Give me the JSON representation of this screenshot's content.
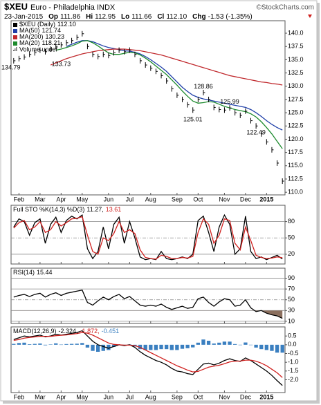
{
  "header": {
    "symbol": "$XEU",
    "name": "Euro - Philadelphia INDX",
    "credit": "©StockCharts.com",
    "date": "23-Jan-2015",
    "quote": [
      {
        "label": "Op",
        "value": "111.86"
      },
      {
        "label": "Hi",
        "value": "112.95"
      },
      {
        "label": "Lo",
        "value": "111.66"
      },
      {
        "label": "Cl",
        "value": "112.10"
      },
      {
        "label": "Chg",
        "value": "-1.53"
      }
    ],
    "change_pct": "(-1.35%)"
  },
  "chart_data": [
    {
      "type": "line",
      "grid": false,
      "categories": [
        null,
        "Feb",
        null,
        null,
        null,
        "Mar",
        null,
        null,
        null,
        "Apr",
        null,
        null,
        null,
        "May",
        null,
        null,
        null,
        null,
        "Jun",
        null,
        null,
        null,
        "Jul",
        null,
        null,
        null,
        "Aug",
        null,
        null,
        null,
        null,
        "Sep",
        null,
        null,
        null,
        "Oct",
        null,
        null,
        null,
        null,
        "Nov",
        null,
        null,
        null,
        "Dec",
        null,
        null,
        null,
        "2015",
        null,
        null,
        null
      ],
      "ylim": [
        109.5,
        142.35
      ],
      "yticks": [
        {
          "value": 140,
          "label": "140.0"
        },
        137.5,
        {
          "value": 135,
          "label": "135.0"
        },
        132.5,
        {
          "value": 130,
          "label": "130.0"
        },
        127.5,
        {
          "value": 125,
          "label": "125.0"
        },
        122.5,
        {
          "value": 120,
          "label": "120.0"
        },
        117.5,
        {
          "value": 115,
          "label": "115.0"
        },
        112.5,
        {
          "value": 110,
          "label": "110.0"
        }
      ],
      "series": [
        {
          "name": "$XEU (Daily)",
          "legend_value": "112.10",
          "color": "#000000",
          "style": "bar",
          "values": [
            134.8,
            135.2,
            135.5,
            136.0,
            136.3,
            136.8,
            136.5,
            137.0,
            137.5,
            137.8,
            138.2,
            138.6,
            139.2,
            139.9,
            137.5,
            136.0,
            135.6,
            136.0,
            135.8,
            136.3,
            136.8,
            136.5,
            136.8,
            136.0,
            134.8,
            134.0,
            133.4,
            132.8,
            132.0,
            131.0,
            129.5,
            128.3,
            127.5,
            126.5,
            125.5,
            127.5,
            128.8,
            127.5,
            126.0,
            125.6,
            125.5,
            125.9,
            125.0,
            124.5,
            125.3,
            123.5,
            122.5,
            121.0,
            119.5,
            118.0,
            115.5,
            112.1
          ]
        },
        {
          "name": "MA(50)",
          "legend_value": "121.74",
          "color": "#1f3fa8",
          "style": "line",
          "values": [
            null,
            null,
            null,
            null,
            null,
            null,
            null,
            null,
            null,
            null,
            137.5,
            137.9,
            138.3,
            138.6,
            138.6,
            138.4,
            138.0,
            137.6,
            137.3,
            137.1,
            136.9,
            136.7,
            136.6,
            136.4,
            136.1,
            135.6,
            135.0,
            134.3,
            133.6,
            132.8,
            131.8,
            130.8,
            129.8,
            129.0,
            128.3,
            127.9,
            127.6,
            127.4,
            127.2,
            127.0,
            126.8,
            126.6,
            126.4,
            126.2,
            126.0,
            125.6,
            125.0,
            124.3,
            123.5,
            122.8,
            122.2,
            121.74
          ]
        },
        {
          "name": "MA(200)",
          "legend_value": "130.23",
          "color": "#c0282c",
          "style": "line",
          "values": [
            null,
            null,
            null,
            null,
            null,
            null,
            null,
            134.0,
            134.4,
            134.8,
            135.2,
            135.5,
            135.8,
            136.1,
            136.3,
            136.5,
            136.7,
            136.8,
            136.9,
            137.0,
            137.0,
            137.0,
            136.9,
            136.8,
            136.7,
            136.5,
            136.3,
            136.1,
            135.9,
            135.6,
            135.3,
            135.0,
            134.7,
            134.4,
            134.1,
            133.8,
            133.5,
            133.2,
            132.9,
            132.6,
            132.3,
            132.0,
            131.8,
            131.6,
            131.4,
            131.2,
            131.0,
            130.8,
            130.7,
            130.5,
            130.4,
            130.23
          ]
        },
        {
          "name": "MA(20)",
          "legend_value": "118.21",
          "color": "#1d8a2d",
          "style": "line",
          "values": [
            null,
            null,
            null,
            null,
            null,
            null,
            null,
            null,
            136.8,
            137.0,
            137.3,
            137.6,
            138.0,
            138.5,
            138.6,
            138.2,
            137.6,
            136.9,
            136.3,
            136.0,
            136.0,
            136.2,
            136.4,
            136.3,
            135.9,
            135.3,
            134.6,
            133.8,
            133.0,
            132.2,
            131.2,
            130.2,
            129.1,
            128.1,
            127.2,
            126.8,
            126.9,
            127.1,
            127.0,
            126.6,
            126.2,
            125.9,
            125.6,
            125.4,
            125.2,
            124.8,
            124.2,
            123.3,
            122.2,
            121.0,
            119.6,
            118.21
          ]
        }
      ],
      "legend_extra": "Volume undef",
      "annotations": [
        134.79,
        133.73,
        128.86,
        125.99,
        125.01,
        122.49
      ]
    },
    {
      "type": "line",
      "grid": true,
      "title": "Full STO %K(14,3) %D(3)",
      "ylim": [
        2,
        110
      ],
      "yticks": [
        80,
        50,
        20
      ],
      "series": [
        {
          "legend_value": "11.27,",
          "color": "#000000",
          "style": "line",
          "values": [
            70,
            85,
            80,
            55,
            78,
            85,
            40,
            75,
            88,
            60,
            82,
            90,
            85,
            92,
            30,
            12,
            25,
            70,
            30,
            75,
            88,
            40,
            80,
            50,
            15,
            10,
            12,
            10,
            25,
            12,
            10,
            12,
            15,
            12,
            20,
            82,
            90,
            60,
            25,
            70,
            92,
            75,
            20,
            30,
            90,
            25,
            12,
            15,
            10,
            14,
            18,
            11.27
          ]
        },
        {
          "legend_value": "13.61",
          "color": "#d0201e",
          "style": "line",
          "values": [
            68,
            78,
            82,
            65,
            70,
            80,
            60,
            65,
            80,
            72,
            78,
            85,
            86,
            89,
            55,
            25,
            20,
            50,
            45,
            58,
            80,
            60,
            65,
            58,
            28,
            14,
            12,
            11,
            18,
            16,
            12,
            12,
            14,
            13,
            16,
            60,
            85,
            75,
            40,
            55,
            85,
            82,
            40,
            28,
            70,
            45,
            18,
            14,
            12,
            13,
            15,
            13.61
          ]
        }
      ]
    },
    {
      "type": "line",
      "grid": true,
      "title": "RSI(14)",
      "oversold": 30,
      "shade_color": "#8b6f5e",
      "ylim": [
        6,
        108.7
      ],
      "yticks": [
        90,
        70,
        50,
        30,
        10
      ],
      "series": [
        {
          "legend_value": "15.44",
          "color": "#000000",
          "style": "line",
          "values": [
            55,
            58,
            60,
            56,
            60,
            62,
            55,
            60,
            63,
            58,
            62,
            64,
            66,
            68,
            45,
            40,
            48,
            55,
            50,
            56,
            60,
            52,
            56,
            48,
            40,
            38,
            40,
            38,
            42,
            36,
            32,
            35,
            38,
            34,
            36,
            52,
            55,
            45,
            38,
            46,
            52,
            50,
            38,
            40,
            50,
            35,
            28,
            30,
            25,
            22,
            20,
            15.44
          ]
        }
      ]
    },
    {
      "type": "line",
      "grid": false,
      "title": "MACD(12,26,9)",
      "ylim": [
        -2.73,
        1.02
      ],
      "yticks": [
        0.5,
        {
          "value": 0,
          "label": "0.0"
        },
        -0.5,
        {
          "value": -1,
          "label": "-1.0"
        },
        -1.5,
        {
          "value": -2,
          "label": "-2.0"
        }
      ],
      "series": [
        {
          "legend_value": "-2.324,",
          "color": "#000000",
          "style": "line",
          "values": [
            0.3,
            0.4,
            0.5,
            0.45,
            0.5,
            0.55,
            0.45,
            0.5,
            0.6,
            0.55,
            0.6,
            0.65,
            0.7,
            0.8,
            0.5,
            0.2,
            0.0,
            -0.1,
            -0.2,
            -0.1,
            0.0,
            -0.05,
            0.0,
            -0.15,
            -0.4,
            -0.6,
            -0.75,
            -0.9,
            -1.0,
            -1.15,
            -1.35,
            -1.5,
            -1.55,
            -1.65,
            -1.7,
            -1.4,
            -1.1,
            -1.05,
            -1.15,
            -1.05,
            -0.9,
            -0.8,
            -0.9,
            -0.95,
            -0.75,
            -0.9,
            -1.1,
            -1.3,
            -1.5,
            -1.75,
            -2.05,
            -2.324
          ]
        },
        {
          "legend_value": "-1.872,",
          "color": "#d0201e",
          "style": "line",
          "values": [
            0.25,
            0.3,
            0.38,
            0.42,
            0.45,
            0.48,
            0.48,
            0.48,
            0.52,
            0.54,
            0.56,
            0.6,
            0.64,
            0.7,
            0.66,
            0.55,
            0.4,
            0.25,
            0.1,
            0.02,
            0.0,
            -0.02,
            -0.02,
            -0.05,
            -0.15,
            -0.3,
            -0.45,
            -0.6,
            -0.75,
            -0.9,
            -1.05,
            -1.2,
            -1.32,
            -1.45,
            -1.55,
            -1.52,
            -1.4,
            -1.28,
            -1.22,
            -1.17,
            -1.08,
            -0.98,
            -0.94,
            -0.93,
            -0.88,
            -0.88,
            -0.94,
            -1.05,
            -1.2,
            -1.4,
            -1.6,
            -1.872
          ]
        },
        {
          "legend_value": "-0.451",
          "color": "#3a7fc0",
          "style": "bar",
          "values": [
            0.05,
            0.1,
            0.12,
            0.03,
            0.05,
            0.07,
            -0.03,
            0.02,
            0.08,
            0.01,
            0.04,
            0.05,
            0.06,
            0.1,
            -0.16,
            -0.35,
            -0.4,
            -0.35,
            -0.3,
            -0.12,
            0,
            -0.03,
            0.02,
            -0.1,
            -0.25,
            -0.3,
            -0.3,
            -0.3,
            -0.25,
            -0.25,
            -0.3,
            -0.3,
            -0.23,
            -0.2,
            -0.15,
            0.12,
            0.3,
            0.23,
            0.07,
            0.12,
            0.18,
            0.18,
            0.04,
            -0.02,
            0.13,
            -0.02,
            -0.16,
            -0.25,
            -0.3,
            -0.35,
            -0.45,
            -0.451
          ]
        }
      ]
    }
  ]
}
